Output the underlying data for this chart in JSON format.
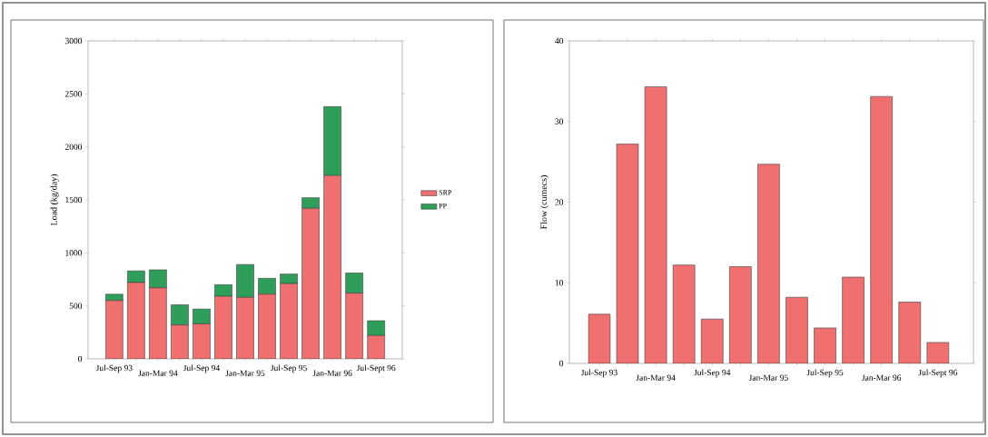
{
  "chart_data": [
    {
      "type": "bar",
      "stacked": true,
      "categories": [
        "Jul-Sep 93",
        null,
        "Jan-Mar 94",
        null,
        "Jul-Sep 94",
        null,
        "Jan-Mar 95",
        null,
        "Jul-Sep 95",
        null,
        "Jan-Mar 96",
        null,
        "Jul-Sept 96"
      ],
      "ylabel": "Load (kg/day)",
      "ylim": [
        0,
        3000
      ],
      "yticks": [
        0,
        500,
        1000,
        1500,
        2000,
        2500,
        3000
      ],
      "legend": "right",
      "series": [
        {
          "name": "SRP",
          "color": "#f07070",
          "values": [
            550,
            720,
            670,
            320,
            330,
            590,
            580,
            610,
            710,
            1420,
            1730,
            620,
            220
          ]
        },
        {
          "name": "PP",
          "color": "#2e9e5a",
          "values": [
            60,
            110,
            170,
            190,
            140,
            110,
            310,
            150,
            90,
            100,
            650,
            190,
            140
          ]
        }
      ]
    },
    {
      "type": "bar",
      "categories": [
        "Jul-Sep 93",
        null,
        "Jan-Mar 94",
        null,
        "Jul-Sep 94",
        null,
        "Jan-Mar 95",
        null,
        "Jul-Sep 95",
        null,
        "Jan-Mar 96",
        null,
        "Jul-Sept 96"
      ],
      "ylabel": "Flow (cumecs)",
      "ylim": [
        0,
        40
      ],
      "yticks": [
        0,
        10,
        20,
        30,
        40
      ],
      "color": "#f07070",
      "values": [
        6.1,
        27.2,
        34.3,
        12.2,
        5.5,
        12.0,
        24.7,
        8.2,
        4.4,
        10.7,
        33.1,
        7.6,
        2.6
      ]
    }
  ]
}
